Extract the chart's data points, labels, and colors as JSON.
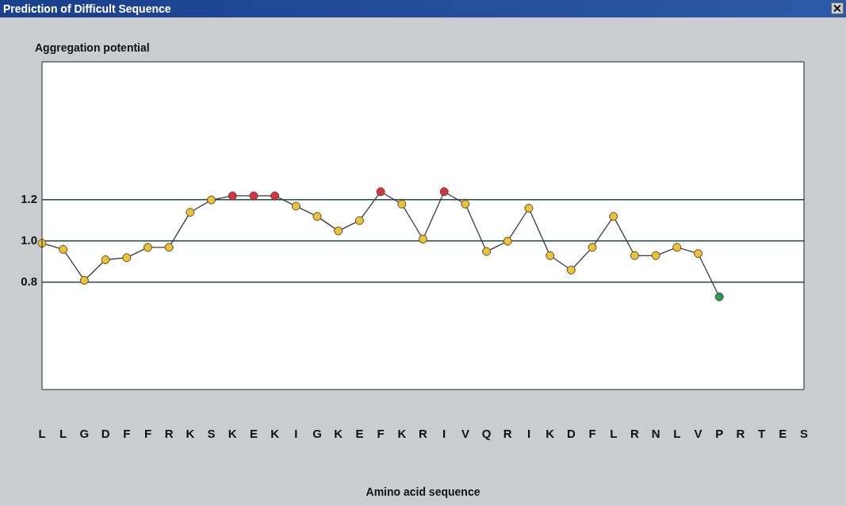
{
  "chart_data": {
    "type": "line",
    "title": "Prediction of Difficult Sequence",
    "ylabel": "Aggregation potential",
    "xlabel": "Amino acid sequence",
    "categories": [
      "L",
      "L",
      "G",
      "D",
      "F",
      "F",
      "R",
      "K",
      "S",
      "K",
      "E",
      "K",
      "I",
      "G",
      "K",
      "E",
      "F",
      "K",
      "R",
      "I",
      "V",
      "Q",
      "R",
      "I",
      "K",
      "D",
      "F",
      "L",
      "R",
      "N",
      "L",
      "V",
      "P",
      "R",
      "T",
      "E",
      "S"
    ],
    "series": [
      {
        "color": "#3a3a3a",
        "values": [
          0.99,
          0.96,
          0.81,
          0.91,
          0.92,
          0.97,
          0.97,
          1.14,
          1.2,
          1.22,
          1.22,
          1.22,
          1.17,
          1.12,
          1.05,
          1.1,
          1.24,
          1.18,
          1.01,
          1.24,
          1.18,
          0.95,
          1.0,
          1.16,
          0.93,
          0.86,
          0.97,
          1.12,
          0.93,
          0.93,
          0.97,
          0.94,
          0.73,
          null,
          null,
          null,
          null
        ],
        "colors": [
          "#f2c12e",
          "#f2c12e",
          "#f2c12e",
          "#f2c12e",
          "#f2c12e",
          "#f2c12e",
          "#f2c12e",
          "#f2c12e",
          "#f2c12e",
          "#e0303a",
          "#e0303a",
          "#e0303a",
          "#f2c12e",
          "#f2c12e",
          "#f2c12e",
          "#f2c12e",
          "#e0303a",
          "#f2c12e",
          "#f2c12e",
          "#e0303a",
          "#f2c12e",
          "#f2c12e",
          "#f2c12e",
          "#f2c12e",
          "#f2c12e",
          "#f2c12e",
          "#f2c12e",
          "#f2c12e",
          "#f2c12e",
          "#f2c12e",
          "#f2c12e",
          "#f2c12e",
          "#2e9a4a",
          null,
          null,
          null,
          null
        ]
      }
    ],
    "ylim": [
      0.28,
      1.87
    ],
    "yticks": [
      0.8,
      {
        "value": 1,
        "label": "1.0"
      },
      1.2
    ],
    "grid": "y",
    "legend": false,
    "marker": "circle",
    "line_style": "solid"
  }
}
